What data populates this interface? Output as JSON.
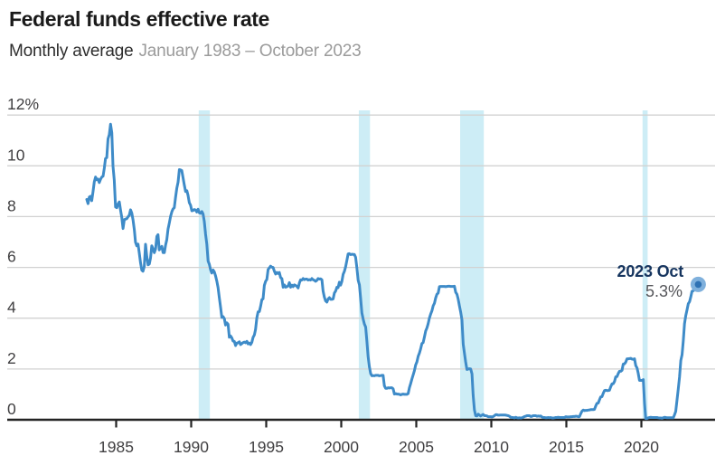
{
  "header": {
    "title": "Federal funds effective rate",
    "subtitle": "Monthly average",
    "date_range": "January 1983 – October 2023"
  },
  "annotation": {
    "label": "2023 Oct",
    "value": "5.3%"
  },
  "colors": {
    "line": "#3E8BC8",
    "recession_band": "#CDEDF6",
    "grid": "#D2D2D2",
    "baseline": "#232323",
    "axis_text": "#414042",
    "title_text": "#1A1A1A",
    "subtitle_text": "#2E2E2E",
    "date_range_text": "#9B9B9B",
    "annotation_label_text": "#16355F",
    "annotation_value_text": "#55565A",
    "dot_outer": "#7FB0DC",
    "dot_inner": "#2F72B4"
  },
  "chart_data": {
    "type": "line",
    "title": "Federal funds effective rate",
    "subtitle": "Monthly average",
    "series_name": "Federal funds effective rate, monthly average (%)",
    "unit": "percent",
    "start": "1983-01",
    "end": "2023-10",
    "xlim": [
      1983.0,
      2023.83
    ],
    "ylim": [
      0,
      12
    ],
    "grid": true,
    "x_ticks": [
      1985,
      1990,
      1995,
      2000,
      2005,
      2010,
      2015,
      2020
    ],
    "y_ticks": [
      {
        "value": 12,
        "label": "12%"
      },
      {
        "value": 10,
        "label": "10"
      },
      {
        "value": 8,
        "label": "8"
      },
      {
        "value": 6,
        "label": "6"
      },
      {
        "value": 4,
        "label": "4"
      },
      {
        "value": 2,
        "label": "2"
      },
      {
        "value": 0,
        "label": "0"
      }
    ],
    "recession_bands": [
      [
        1990.5,
        1991.25
      ],
      [
        2001.17,
        2001.92
      ],
      [
        2007.92,
        2009.5
      ],
      [
        2020.08,
        2020.42
      ]
    ],
    "endpoint": {
      "label": "2023 Oct",
      "value": 5.33,
      "display_value": "5.3%"
    },
    "values": [
      8.68,
      8.51,
      8.77,
      8.8,
      8.63,
      8.98,
      9.37,
      9.56,
      9.45,
      9.48,
      9.34,
      9.47,
      9.56,
      9.59,
      9.91,
      10.29,
      10.32,
      11.06,
      11.23,
      11.64,
      11.3,
      9.99,
      9.43,
      8.38,
      8.35,
      8.5,
      8.58,
      8.27,
      7.97,
      7.53,
      7.88,
      7.9,
      7.92,
      7.99,
      8.05,
      8.27,
      8.14,
      7.86,
      7.48,
      6.99,
      6.85,
      6.92,
      6.56,
      6.17,
      5.89,
      5.85,
      6.04,
      6.91,
      6.43,
      6.1,
      6.13,
      6.37,
      6.85,
      6.73,
      6.58,
      6.73,
      7.22,
      7.29,
      6.69,
      6.77,
      6.83,
      6.58,
      6.58,
      6.87,
      7.09,
      7.51,
      7.75,
      8.01,
      8.19,
      8.3,
      8.35,
      8.76,
      9.12,
      9.36,
      9.85,
      9.84,
      9.81,
      9.53,
      9.24,
      8.99,
      9.02,
      8.84,
      8.55,
      8.45,
      8.23,
      8.24,
      8.28,
      8.26,
      8.18,
      8.29,
      8.15,
      8.13,
      8.2,
      8.11,
      7.81,
      7.31,
      6.91,
      6.25,
      6.12,
      5.91,
      5.78,
      5.9,
      5.82,
      5.66,
      5.45,
      5.21,
      4.81,
      4.43,
      4.03,
      4.06,
      3.98,
      3.73,
      3.82,
      3.76,
      3.25,
      3.3,
      3.22,
      3.1,
      3.09,
      2.92,
      3.02,
      3.03,
      3.07,
      2.96,
      3.0,
      3.04,
      3.06,
      3.03,
      3.09,
      2.99,
      3.02,
      2.96,
      3.05,
      3.25,
      3.34,
      3.56,
      4.01,
      4.25,
      4.26,
      4.47,
      4.73,
      4.76,
      5.29,
      5.45,
      5.53,
      5.92,
      5.98,
      6.05,
      6.01,
      6.0,
      5.85,
      5.74,
      5.8,
      5.76,
      5.8,
      5.6,
      5.56,
      5.22,
      5.31,
      5.22,
      5.24,
      5.27,
      5.4,
      5.22,
      5.3,
      5.24,
      5.31,
      5.29,
      5.25,
      5.19,
      5.39,
      5.51,
      5.5,
      5.56,
      5.52,
      5.54,
      5.54,
      5.5,
      5.52,
      5.5,
      5.56,
      5.51,
      5.49,
      5.45,
      5.49,
      5.56,
      5.54,
      5.55,
      5.51,
      5.07,
      4.83,
      4.68,
      4.63,
      4.76,
      4.81,
      4.74,
      4.74,
      4.76,
      4.99,
      5.07,
      5.22,
      5.2,
      5.42,
      5.3,
      5.45,
      5.73,
      5.85,
      6.02,
      6.27,
      6.53,
      6.54,
      6.5,
      6.52,
      6.51,
      6.51,
      6.4,
      5.98,
      5.49,
      5.31,
      4.8,
      4.21,
      3.97,
      3.77,
      3.65,
      3.07,
      2.49,
      2.09,
      1.82,
      1.73,
      1.74,
      1.73,
      1.75,
      1.75,
      1.75,
      1.73,
      1.74,
      1.75,
      1.75,
      1.34,
      1.24,
      1.24,
      1.26,
      1.25,
      1.26,
      1.26,
      1.22,
      1.01,
      1.03,
      1.01,
      1.01,
      1.0,
      0.98,
      1.0,
      1.01,
      1.0,
      1.0,
      1.0,
      1.03,
      1.26,
      1.43,
      1.61,
      1.76,
      1.93,
      2.16,
      2.28,
      2.5,
      2.63,
      2.79,
      3.0,
      3.04,
      3.26,
      3.5,
      3.62,
      3.78,
      4.0,
      4.16,
      4.29,
      4.49,
      4.59,
      4.79,
      4.94,
      4.99,
      5.24,
      5.25,
      5.25,
      5.25,
      5.25,
      5.24,
      5.25,
      5.26,
      5.26,
      5.25,
      5.25,
      5.25,
      5.26,
      5.02,
      4.94,
      4.76,
      4.49,
      4.24,
      3.94,
      2.98,
      2.61,
      2.28,
      1.98,
      2.0,
      2.01,
      2.0,
      1.81,
      0.97,
      0.39,
      0.16,
      0.15,
      0.22,
      0.18,
      0.15,
      0.18,
      0.21,
      0.16,
      0.16,
      0.15,
      0.12,
      0.12,
      0.12,
      0.11,
      0.13,
      0.16,
      0.2,
      0.2,
      0.18,
      0.18,
      0.19,
      0.19,
      0.19,
      0.19,
      0.18,
      0.17,
      0.16,
      0.14,
      0.1,
      0.09,
      0.09,
      0.07,
      0.1,
      0.08,
      0.07,
      0.08,
      0.07,
      0.08,
      0.1,
      0.13,
      0.14,
      0.16,
      0.16,
      0.16,
      0.13,
      0.14,
      0.16,
      0.16,
      0.16,
      0.14,
      0.15,
      0.14,
      0.15,
      0.11,
      0.09,
      0.09,
      0.08,
      0.08,
      0.09,
      0.08,
      0.09,
      0.07,
      0.07,
      0.08,
      0.09,
      0.09,
      0.1,
      0.09,
      0.09,
      0.09,
      0.09,
      0.09,
      0.12,
      0.11,
      0.11,
      0.11,
      0.12,
      0.12,
      0.13,
      0.13,
      0.14,
      0.14,
      0.12,
      0.12,
      0.24,
      0.34,
      0.38,
      0.36,
      0.37,
      0.37,
      0.38,
      0.39,
      0.4,
      0.4,
      0.4,
      0.41,
      0.54,
      0.65,
      0.66,
      0.79,
      0.9,
      0.91,
      1.04,
      1.15,
      1.16,
      1.15,
      1.15,
      1.16,
      1.3,
      1.41,
      1.42,
      1.51,
      1.69,
      1.7,
      1.82,
      1.91,
      1.91,
      1.95,
      2.19,
      2.2,
      2.27,
      2.4,
      2.4,
      2.41,
      2.42,
      2.39,
      2.38,
      2.4,
      2.13,
      2.04,
      1.83,
      1.55,
      1.55,
      1.55,
      1.58,
      0.65,
      0.05,
      0.05,
      0.08,
      0.09,
      0.1,
      0.09,
      0.09,
      0.09,
      0.09,
      0.09,
      0.08,
      0.07,
      0.07,
      0.06,
      0.08,
      0.1,
      0.09,
      0.08,
      0.08,
      0.08,
      0.08,
      0.08,
      0.08,
      0.2,
      0.33,
      0.77,
      1.21,
      1.68,
      2.33,
      2.56,
      3.08,
      3.78,
      4.1,
      4.33,
      4.57,
      4.65,
      4.83,
      5.06,
      5.08,
      5.12,
      5.33,
      5.33,
      5.33
    ]
  }
}
